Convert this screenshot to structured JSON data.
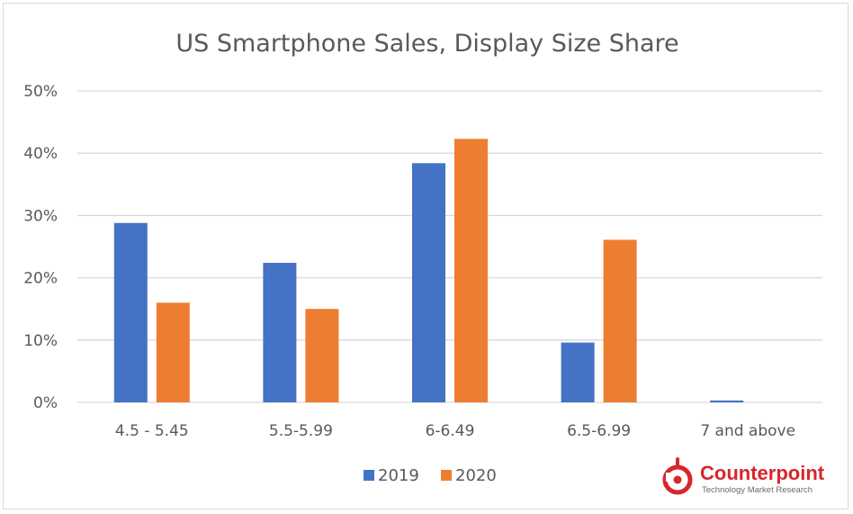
{
  "chart_data": {
    "type": "bar",
    "title": "US Smartphone Sales, Display Size Share",
    "xlabel": "",
    "ylabel": "",
    "categories": [
      "4.5 - 5.45",
      "5.5-5.99",
      "6-6.49",
      "6.5-6.99",
      "7 and above"
    ],
    "series": [
      {
        "name": "2019",
        "color": "#4472c4",
        "values": [
          28.8,
          22.4,
          38.4,
          9.6,
          0.3
        ]
      },
      {
        "name": "2020",
        "color": "#ed7d31",
        "values": [
          16.0,
          15.0,
          42.3,
          26.1,
          0.0
        ]
      }
    ],
    "ylim": [
      0,
      50
    ],
    "yticks": [
      "0%",
      "10%",
      "20%",
      "30%",
      "40%",
      "50%"
    ],
    "grid": true,
    "legend": "bottom"
  },
  "brand": {
    "name": "Counterpoint",
    "tagline": "Technology Market Research",
    "color": "#d7262c"
  }
}
